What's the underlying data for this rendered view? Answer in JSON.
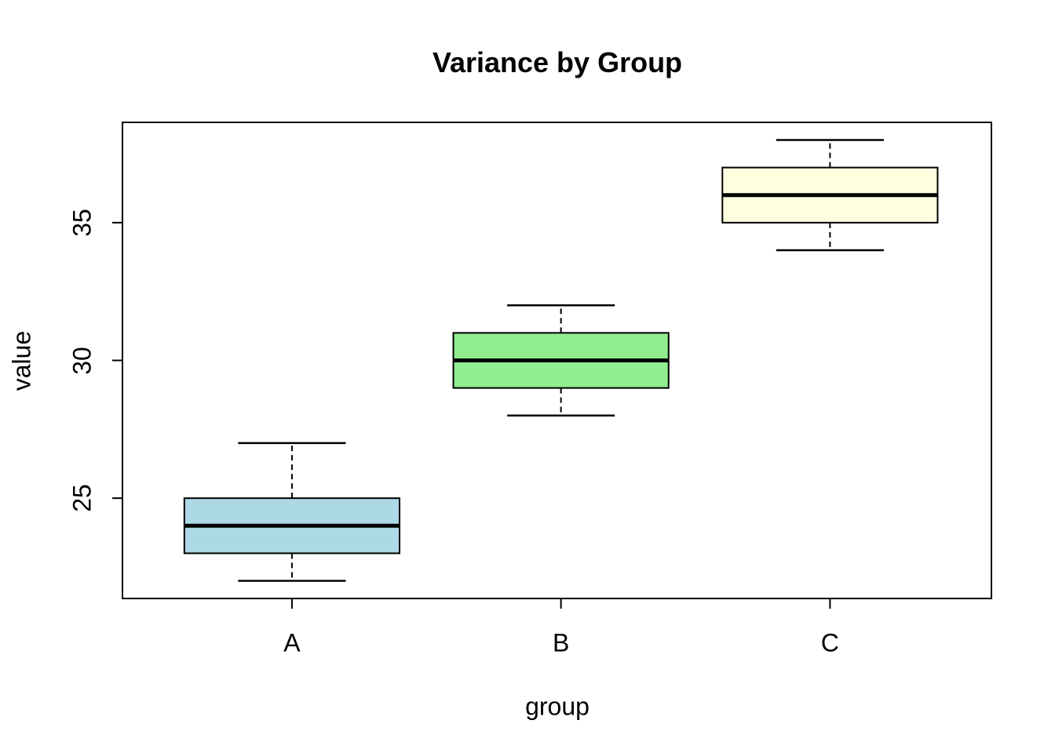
{
  "chart_data": {
    "type": "boxplot",
    "title": "Variance by Group",
    "xlabel": "group",
    "ylabel": "value",
    "yticks": [
      25,
      30,
      35
    ],
    "ylim": [
      21.36,
      38.64
    ],
    "xlim": [
      0.37,
      3.6
    ],
    "grid": false,
    "legend": "none",
    "background": "#ffffff",
    "stroke_color": "#000000",
    "groups": [
      {
        "label": "A",
        "position": 1,
        "color": "#ADD8E6",
        "whisker_low": 22,
        "q1": 23,
        "median": 24,
        "q3": 25,
        "whisker_high": 27
      },
      {
        "label": "B",
        "position": 2,
        "color": "#90EE90",
        "whisker_low": 28,
        "q1": 29,
        "median": 30,
        "q3": 31,
        "whisker_high": 32
      },
      {
        "label": "C",
        "position": 3,
        "color": "#FFFFE0",
        "whisker_low": 34,
        "q1": 35,
        "median": 36,
        "q3": 37,
        "whisker_high": 38
      }
    ],
    "box_width_units": 0.8,
    "cap_width_units": 0.4
  }
}
